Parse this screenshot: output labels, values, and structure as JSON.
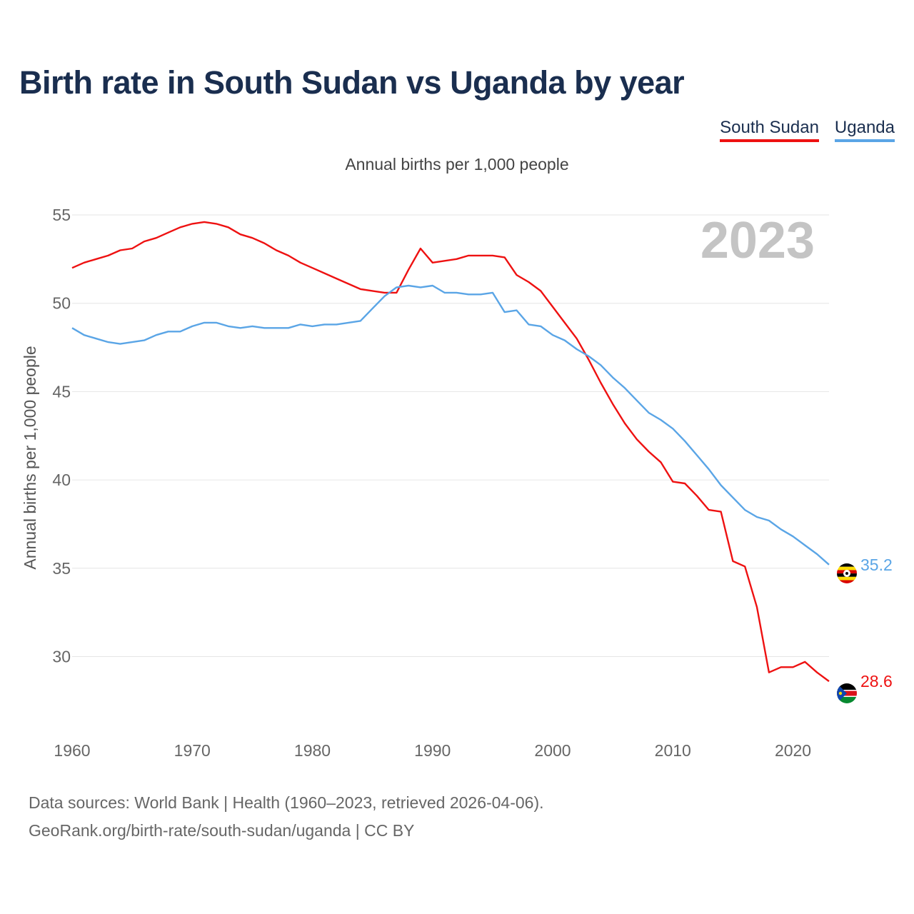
{
  "title": "Birth rate in South Sudan vs Uganda by year",
  "subtitle": "Annual births per 1,000 people",
  "legend": [
    {
      "name": "South Sudan",
      "color": "#ee1111"
    },
    {
      "name": "Uganda",
      "color": "#5aa5e6"
    }
  ],
  "footer": {
    "line1": "Data sources: World Bank | Health (1960–2023, retrieved 2026-04-06).",
    "line2": "GeoRank.org/birth-rate/south-sudan/uganda | CC BY"
  },
  "chart_data": {
    "type": "line",
    "title": "Birth rate in South Sudan vs Uganda by year",
    "ylabel": "Annual births per 1,000 people",
    "xlabel": "",
    "year_label": "2023",
    "xlim": [
      1960,
      2023
    ],
    "ylim": [
      26.3,
      55
    ],
    "xticks": [
      1960,
      1970,
      1980,
      1990,
      2000,
      2010,
      2020
    ],
    "yticks": [
      30,
      35,
      40,
      45,
      50,
      55
    ],
    "grid": true,
    "x": [
      1960,
      1961,
      1962,
      1963,
      1964,
      1965,
      1966,
      1967,
      1968,
      1969,
      1970,
      1971,
      1972,
      1973,
      1974,
      1975,
      1976,
      1977,
      1978,
      1979,
      1980,
      1981,
      1982,
      1983,
      1984,
      1985,
      1986,
      1987,
      1988,
      1989,
      1990,
      1991,
      1992,
      1993,
      1994,
      1995,
      1996,
      1997,
      1998,
      1999,
      2000,
      2001,
      2002,
      2003,
      2004,
      2005,
      2006,
      2007,
      2008,
      2009,
      2010,
      2011,
      2012,
      2013,
      2014,
      2015,
      2016,
      2017,
      2018,
      2019,
      2020,
      2021,
      2022,
      2023
    ],
    "series": [
      {
        "name": "South Sudan",
        "color": "#ee1111",
        "end_label": "28.6",
        "values": [
          52.0,
          52.3,
          52.5,
          52.7,
          53.0,
          53.1,
          53.5,
          53.7,
          54.0,
          54.3,
          54.5,
          54.6,
          54.5,
          54.3,
          53.9,
          53.7,
          53.4,
          53.0,
          52.7,
          52.3,
          52.0,
          51.7,
          51.4,
          51.1,
          50.8,
          50.7,
          50.6,
          50.6,
          51.9,
          53.1,
          52.3,
          52.4,
          52.5,
          52.7,
          52.7,
          52.7,
          52.6,
          51.6,
          51.2,
          50.7,
          49.8,
          48.9,
          48.0,
          46.8,
          45.5,
          44.3,
          43.2,
          42.3,
          41.6,
          41.0,
          39.9,
          39.8,
          39.1,
          38.3,
          38.2,
          35.4,
          35.1,
          32.8,
          29.1,
          29.4,
          29.4,
          29.7,
          29.1,
          28.6
        ]
      },
      {
        "name": "Uganda",
        "color": "#5aa5e6",
        "end_label": "35.2",
        "values": [
          48.6,
          48.2,
          48.0,
          47.8,
          47.7,
          47.8,
          47.9,
          48.2,
          48.4,
          48.4,
          48.7,
          48.9,
          48.9,
          48.7,
          48.6,
          48.7,
          48.6,
          48.6,
          48.6,
          48.8,
          48.7,
          48.8,
          48.8,
          48.9,
          49.0,
          49.7,
          50.4,
          50.9,
          51.0,
          50.9,
          51.0,
          50.6,
          50.6,
          50.5,
          50.5,
          50.6,
          49.5,
          49.6,
          48.8,
          48.7,
          48.2,
          47.9,
          47.4,
          47.0,
          46.5,
          45.8,
          45.2,
          44.5,
          43.8,
          43.4,
          42.9,
          42.2,
          41.4,
          40.6,
          39.7,
          39.0,
          38.3,
          37.9,
          37.7,
          37.2,
          36.8,
          36.3,
          35.8,
          35.2
        ]
      }
    ]
  }
}
